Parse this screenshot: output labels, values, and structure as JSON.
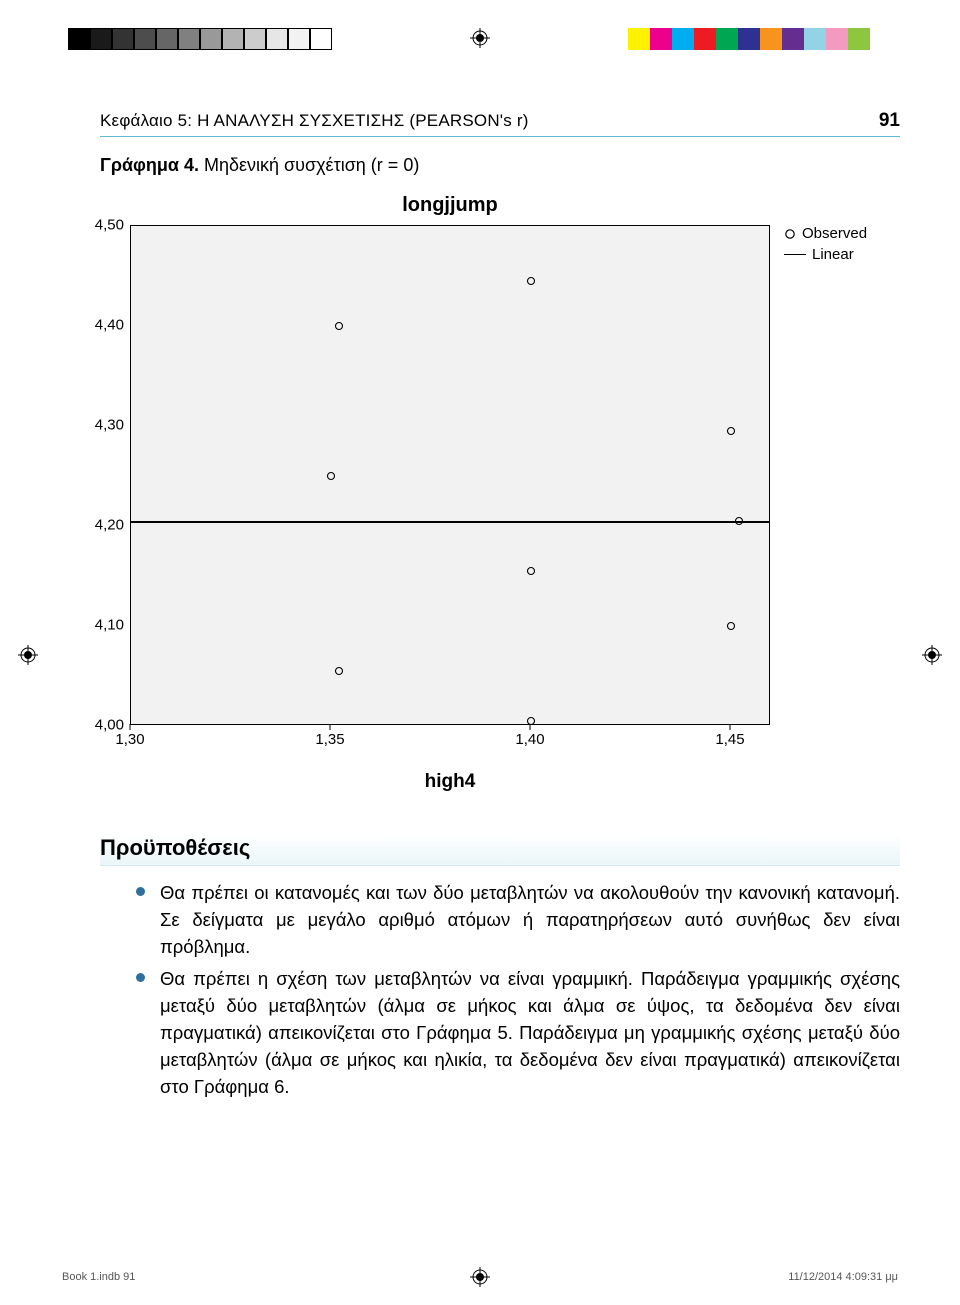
{
  "print_marks": {
    "grayscale_bar": [
      "#000000",
      "#1a1a1a",
      "#333333",
      "#4d4d4d",
      "#666666",
      "#808080",
      "#999999",
      "#b3b3b3",
      "#cccccc",
      "#e6e6e6",
      "#f2f2f2",
      "#ffffff"
    ],
    "color_bar": [
      "#fff200",
      "#ec008c",
      "#00aeef",
      "#ed1c24",
      "#00a651",
      "#2e3192",
      "#f7941e",
      "#662d91",
      "#92d3e6",
      "#f49ac1",
      "#8dc63f",
      "#ffffff"
    ],
    "grayscale_border": "#000000"
  },
  "header": {
    "chapter_title": "Κεφάλαιο 5: Η ΑΝΑΛΥΣΗ ΣΥΣΧΕΤΙΣΗΣ (PEARSON's r)",
    "page_number": "91",
    "underline_color": "#5fbcd3"
  },
  "figure_caption": {
    "label": "Γράφημα 4.",
    "sub": " Μηδενική συσχέτιση  (r = 0)"
  },
  "chart": {
    "type": "scatter",
    "title": "longjjump",
    "xlabel": "high4",
    "legend": {
      "observed": "Observed",
      "linear": "Linear"
    },
    "plot_background": "#f2f2f2",
    "border_color": "#000000",
    "marker_style": "open-circle",
    "marker_size": 9,
    "marker_stroke": "#000000",
    "ylim": [
      4.0,
      4.5
    ],
    "xlim": [
      1.3,
      1.46
    ],
    "yticks": [
      4.0,
      4.1,
      4.2,
      4.3,
      4.4,
      4.5
    ],
    "ytick_labels": [
      "4,00",
      "4,10",
      "4,20",
      "4,30",
      "4,40",
      "4,50"
    ],
    "xticks": [
      1.3,
      1.35,
      1.4,
      1.45
    ],
    "xtick_labels": [
      "1,30",
      "1,35",
      "1,40",
      "1,45"
    ],
    "trendline_y": 4.205,
    "points": [
      {
        "x": 1.352,
        "y": 4.4
      },
      {
        "x": 1.35,
        "y": 4.25
      },
      {
        "x": 1.352,
        "y": 4.055
      },
      {
        "x": 1.4,
        "y": 4.445
      },
      {
        "x": 1.4,
        "y": 4.155
      },
      {
        "x": 1.4,
        "y": 4.005
      },
      {
        "x": 1.45,
        "y": 4.295
      },
      {
        "x": 1.452,
        "y": 4.205
      },
      {
        "x": 1.45,
        "y": 4.1
      }
    ],
    "tick_fontsize": 15,
    "title_fontsize": 20,
    "label_fontsize": 19
  },
  "section": {
    "heading": "Προϋποθέσεις",
    "bullet_color": "#2e6f9e",
    "bullets": [
      "Θα πρέπει οι κατανομές και των δύο μεταβλητών να ακολουθούν την κανονική κατανομή. Σε δείγματα με μεγάλο αριθμό ατόμων ή παρατηρήσεων αυτό συνήθως δεν είναι πρόβλημα.",
      "Θα πρέπει η σχέση των μεταβλητών να είναι γραμμική. Παράδειγμα γραμμικής σχέσης μεταξύ δύο μεταβλητών (άλμα σε μήκος και άλμα σε ύψος, τα δεδομένα δεν είναι πραγματικά) απεικονίζεται στο Γράφημα 5. Παράδειγμα  μη γραμμικής σχέσης μεταξύ δύο μεταβλητών (άλμα σε μήκος και ηλικία, τα δεδομένα δεν είναι πραγματικά) απεικονίζεται στο Γράφημα 6."
    ]
  },
  "footer": {
    "left": "Book 1.indb   91",
    "right": "11/12/2014   4:09:31 μμ"
  }
}
